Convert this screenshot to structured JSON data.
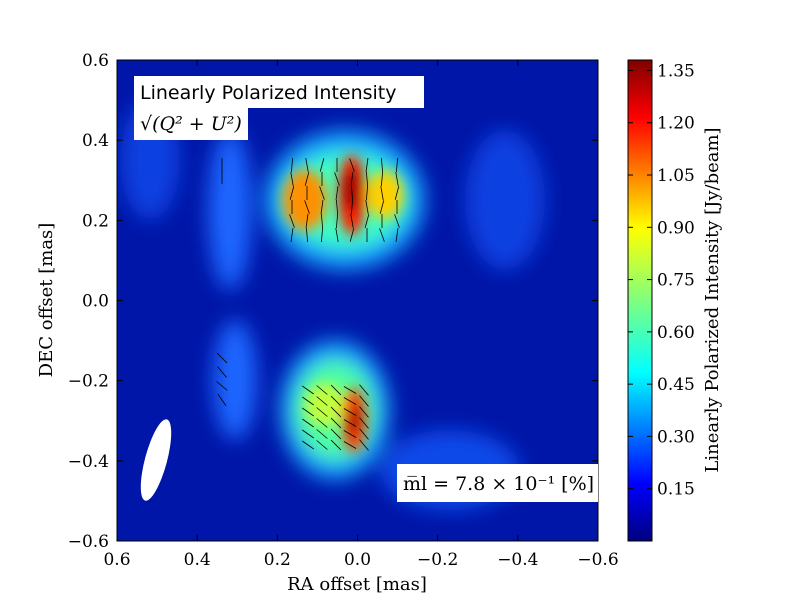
{
  "chart_data": {
    "type": "heatmap",
    "title": "Linearly Polarized Intensity",
    "subtitle": "√(Q² + U²)",
    "xlabel": "RA offset [mas]",
    "ylabel": "DEC offset [mas]",
    "xlim": [
      0.6,
      -0.6
    ],
    "ylim": [
      -0.6,
      0.6
    ],
    "x_ticks": [
      "0.6",
      "0.4",
      "0.2",
      "0.0",
      "−0.2",
      "−0.4",
      "−0.6"
    ],
    "y_ticks": [
      "−0.6",
      "−0.4",
      "−0.2",
      "0.0",
      "0.2",
      "0.4",
      "0.6"
    ],
    "colorbar": {
      "label": "Linearly Polarized Intensity [Jy/beam]",
      "range": [
        0.0,
        1.38
      ],
      "ticks": [
        "0.15",
        "0.30",
        "0.45",
        "0.60",
        "0.75",
        "0.90",
        "1.05",
        "1.20",
        "1.35"
      ],
      "colormap": "jet"
    },
    "annotation_m": "m̅l =  7.8 × 10⁻¹ [%]",
    "beam": {
      "x": 0.485,
      "y": -0.4,
      "bmaj": 0.2,
      "bmin": 0.06
    },
    "components": [
      {
        "x": 0.02,
        "y": 0.26,
        "peak": 1.38,
        "sx": 0.025,
        "sy": 0.08
      },
      {
        "x": 0.12,
        "y": 0.25,
        "peak": 1.2,
        "sx": 0.03,
        "sy": 0.05
      },
      {
        "x": -0.05,
        "y": 0.26,
        "peak": 0.85,
        "sx": 0.04,
        "sy": 0.06
      },
      {
        "x": 0.0,
        "y": -0.32,
        "peak": 1.25,
        "sx": 0.025,
        "sy": 0.07
      },
      {
        "x": 0.08,
        "y": -0.3,
        "peak": 0.85,
        "sx": 0.05,
        "sy": 0.05
      }
    ]
  },
  "colors": {
    "field_background": "#0016a8",
    "beam": "#ffffff"
  }
}
